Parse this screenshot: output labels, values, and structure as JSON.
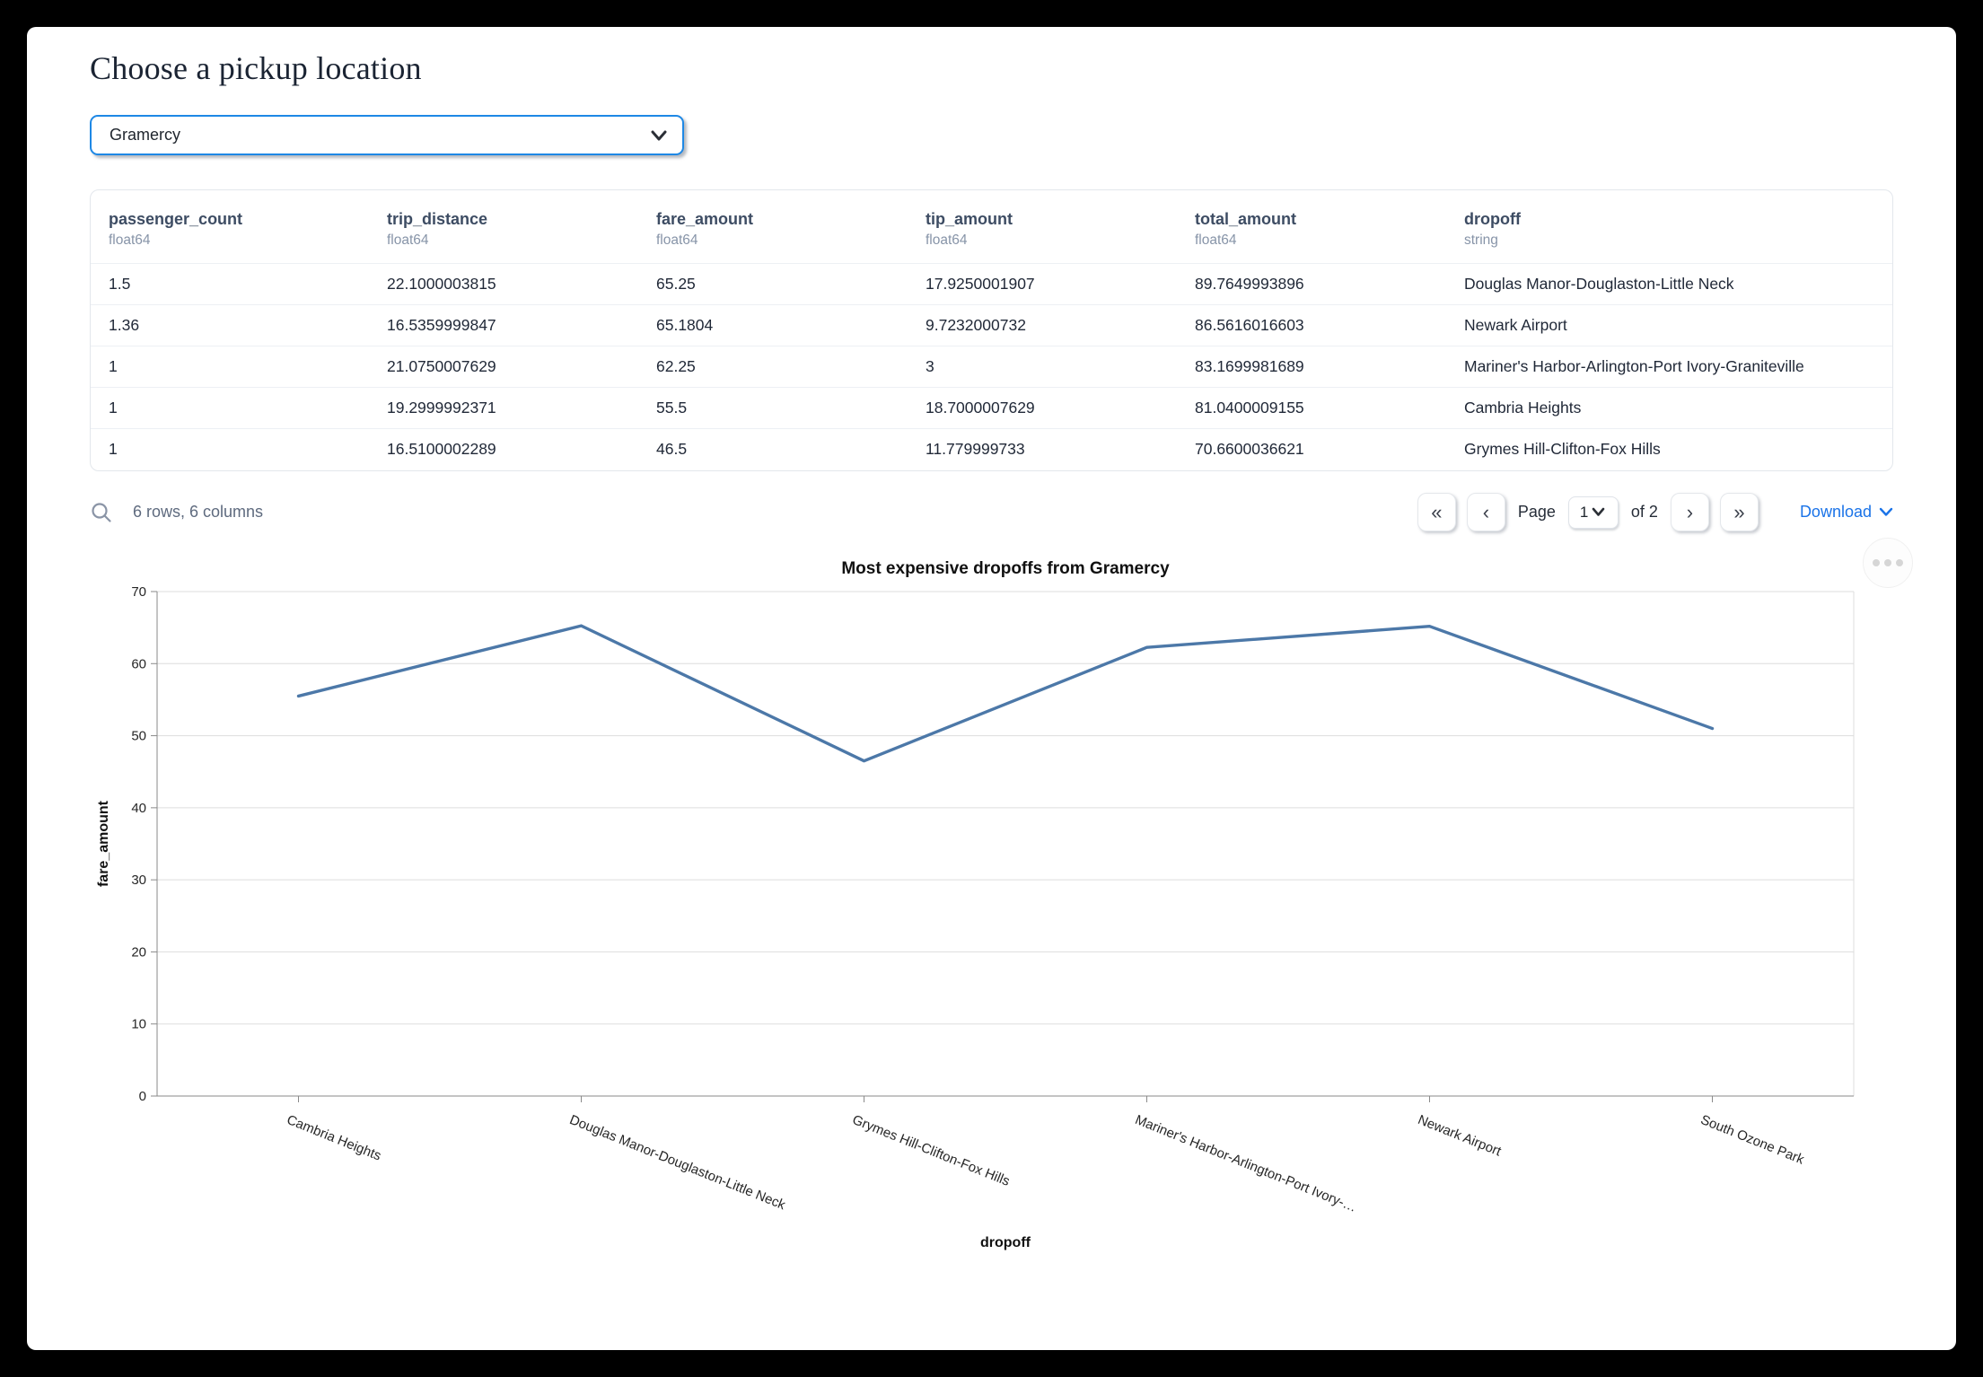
{
  "page": {
    "title": "Choose a pickup location"
  },
  "pickup_select": {
    "value": "Gramercy"
  },
  "table": {
    "columns": [
      {
        "name": "passenger_count",
        "type": "float64"
      },
      {
        "name": "trip_distance",
        "type": "float64"
      },
      {
        "name": "fare_amount",
        "type": "float64"
      },
      {
        "name": "tip_amount",
        "type": "float64"
      },
      {
        "name": "total_amount",
        "type": "float64"
      },
      {
        "name": "dropoff",
        "type": "string"
      }
    ],
    "rows": [
      [
        "1.5",
        "22.1000003815",
        "65.25",
        "17.9250001907",
        "89.7649993896",
        "Douglas Manor-Douglaston-Little Neck"
      ],
      [
        "1.36",
        "16.5359999847",
        "65.1804",
        "9.7232000732",
        "86.5616016603",
        "Newark Airport"
      ],
      [
        "1",
        "21.0750007629",
        "62.25",
        "3",
        "83.1699981689",
        "Mariner's Harbor-Arlington-Port Ivory-Graniteville"
      ],
      [
        "1",
        "19.2999992371",
        "55.5",
        "18.7000007629",
        "81.0400009155",
        "Cambria Heights"
      ],
      [
        "1",
        "16.5100002289",
        "46.5",
        "11.779999733",
        "70.6600036621",
        "Grymes Hill-Clifton-Fox Hills"
      ]
    ],
    "summary": "6 rows, 6 columns"
  },
  "pagination": {
    "first_glyph": "«",
    "prev_glyph": "‹",
    "page_label": "Page",
    "current_page": "1",
    "of_label": "of 2",
    "next_glyph": "›",
    "last_glyph": "»",
    "download_label": "Download"
  },
  "icons": {
    "table_search": "search-icon",
    "select_caret": "chevron-down-icon",
    "page_select_caret": "chevron-down-icon",
    "download_caret": "chevron-down-icon",
    "chart_menu": "ellipsis-menu-icon"
  },
  "colors": {
    "accent_blue": "#1e88e5",
    "link_blue": "#1a73e8",
    "line_blue": "#4c78a8"
  },
  "chart_data": {
    "type": "line",
    "title": "Most expensive dropoffs from Gramercy",
    "xlabel": "dropoff",
    "ylabel": "fare_amount",
    "categories": [
      "Cambria Heights",
      "Douglas Manor-Douglaston-Little Neck",
      "Grymes Hill-Clifton-Fox Hills",
      "Mariner's Harbor-Arlington-Port Ivory-…",
      "Newark Airport",
      "South Ozone Park"
    ],
    "values": [
      55.5,
      65.25,
      46.5,
      62.25,
      65.1804,
      51
    ],
    "ylim": [
      0,
      70
    ],
    "yticks": [
      0,
      10,
      20,
      30,
      40,
      50,
      60,
      70
    ],
    "grid": true,
    "legend": "none",
    "line_color": "#4c78a8"
  }
}
